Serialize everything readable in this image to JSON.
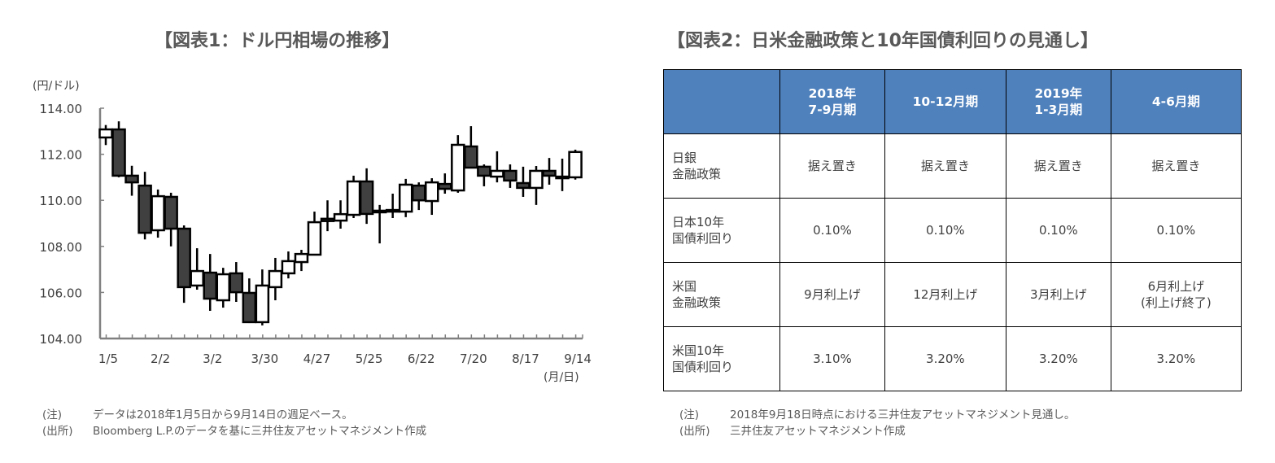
{
  "chart1": {
    "title": "【図表1：ドル円相場の推移】"
  },
  "chart_data": {
    "type": "candlestick",
    "title": "【図表1：ドル円相場の推移】",
    "ylabel": "(円/ドル)",
    "xlabel": "(月/日)",
    "ylim": [
      104,
      114
    ],
    "yticks": [
      "114.00",
      "112.00",
      "110.00",
      "108.00",
      "106.00",
      "104.00"
    ],
    "xtick_labels": [
      "1/5",
      "2/2",
      "3/2",
      "3/30",
      "4/27",
      "5/25",
      "6/22",
      "7/20",
      "8/17",
      "9/14"
    ],
    "xtick_index": [
      0,
      4,
      8,
      12,
      16,
      20,
      24,
      28,
      32,
      36
    ],
    "grid": false,
    "colors": {
      "up": "#ffffff",
      "down": "#404040",
      "outline": "#000000",
      "axis": "#808080"
    },
    "candles": [
      {
        "o": 112.73,
        "h": 113.27,
        "l": 112.4,
        "c": 113.08
      },
      {
        "o": 113.08,
        "h": 113.43,
        "l": 111.0,
        "c": 111.07
      },
      {
        "o": 111.07,
        "h": 111.5,
        "l": 110.2,
        "c": 110.78
      },
      {
        "o": 110.64,
        "h": 111.24,
        "l": 108.3,
        "c": 108.59
      },
      {
        "o": 108.7,
        "h": 110.47,
        "l": 108.38,
        "c": 110.18
      },
      {
        "o": 110.15,
        "h": 110.33,
        "l": 108.0,
        "c": 108.77
      },
      {
        "o": 108.77,
        "h": 108.91,
        "l": 105.55,
        "c": 106.23
      },
      {
        "o": 106.3,
        "h": 107.92,
        "l": 106.12,
        "c": 106.93
      },
      {
        "o": 106.86,
        "h": 107.67,
        "l": 105.2,
        "c": 105.73
      },
      {
        "o": 105.66,
        "h": 107.07,
        "l": 105.34,
        "c": 106.79
      },
      {
        "o": 106.83,
        "h": 107.32,
        "l": 105.59,
        "c": 106.01
      },
      {
        "o": 105.98,
        "h": 106.61,
        "l": 104.67,
        "c": 104.71
      },
      {
        "o": 104.71,
        "h": 107.0,
        "l": 104.57,
        "c": 106.3
      },
      {
        "o": 106.23,
        "h": 107.5,
        "l": 105.66,
        "c": 106.93
      },
      {
        "o": 106.83,
        "h": 107.78,
        "l": 106.61,
        "c": 107.36
      },
      {
        "o": 107.32,
        "h": 107.85,
        "l": 106.93,
        "c": 107.67
      },
      {
        "o": 107.64,
        "h": 109.51,
        "l": 107.64,
        "c": 109.05
      },
      {
        "o": 109.2,
        "h": 110.0,
        "l": 108.66,
        "c": 109.1
      },
      {
        "o": 109.12,
        "h": 110.0,
        "l": 108.77,
        "c": 109.4
      },
      {
        "o": 109.37,
        "h": 111.07,
        "l": 109.23,
        "c": 110.82
      },
      {
        "o": 110.82,
        "h": 111.39,
        "l": 108.98,
        "c": 109.41
      },
      {
        "o": 109.5,
        "h": 109.8,
        "l": 108.13,
        "c": 109.55
      },
      {
        "o": 109.55,
        "h": 110.29,
        "l": 109.23,
        "c": 109.58
      },
      {
        "o": 109.51,
        "h": 110.93,
        "l": 109.27,
        "c": 110.68
      },
      {
        "o": 110.64,
        "h": 110.78,
        "l": 109.58,
        "c": 110.0
      },
      {
        "o": 109.97,
        "h": 110.96,
        "l": 109.37,
        "c": 110.78
      },
      {
        "o": 110.71,
        "h": 111.17,
        "l": 110.29,
        "c": 110.5
      },
      {
        "o": 110.43,
        "h": 112.83,
        "l": 110.33,
        "c": 112.41
      },
      {
        "o": 112.34,
        "h": 113.22,
        "l": 111.42,
        "c": 111.42
      },
      {
        "o": 111.46,
        "h": 111.56,
        "l": 110.61,
        "c": 111.07
      },
      {
        "o": 111.03,
        "h": 112.13,
        "l": 110.78,
        "c": 111.28
      },
      {
        "o": 111.28,
        "h": 111.56,
        "l": 110.54,
        "c": 110.86
      },
      {
        "o": 110.75,
        "h": 111.46,
        "l": 110.15,
        "c": 110.54
      },
      {
        "o": 110.54,
        "h": 111.49,
        "l": 109.8,
        "c": 111.28
      },
      {
        "o": 111.28,
        "h": 111.84,
        "l": 110.68,
        "c": 111.07
      },
      {
        "o": 111.0,
        "h": 111.81,
        "l": 110.4,
        "c": 111.03
      },
      {
        "o": 111.0,
        "h": 112.2,
        "l": 110.9,
        "c": 112.1
      }
    ]
  },
  "notes1": [
    {
      "label": "(注)",
      "text": "データは2018年1月5日から9月14日の週足ベース。"
    },
    {
      "label": "(出所)",
      "text": "Bloomberg L.P.のデータを基に三井住友アセットマネジメント作成"
    }
  ],
  "table": {
    "title": "【図表2：日米金融政策と10年国債利回りの見通し】",
    "header_color": "#4f81bd",
    "headers": [
      [
        "",
        ""
      ],
      [
        "2018年",
        "7-9月期"
      ],
      [
        "10-12月期",
        ""
      ],
      [
        "2019年",
        "1-3月期"
      ],
      [
        "4-6月期",
        ""
      ]
    ],
    "rows": [
      {
        "label": [
          "日銀",
          "金融政策"
        ],
        "cells": [
          [
            "据え置き",
            ""
          ],
          [
            "据え置き",
            ""
          ],
          [
            "据え置き",
            ""
          ],
          [
            "据え置き",
            ""
          ]
        ]
      },
      {
        "label": [
          "日本10年",
          "国債利回り"
        ],
        "cells": [
          [
            "0.10%",
            ""
          ],
          [
            "0.10%",
            ""
          ],
          [
            "0.10%",
            ""
          ],
          [
            "0.10%",
            ""
          ]
        ]
      },
      {
        "label": [
          "米国",
          "金融政策"
        ],
        "cells": [
          [
            "9月利上げ",
            ""
          ],
          [
            "12月利上げ",
            ""
          ],
          [
            "3月利上げ",
            ""
          ],
          [
            "6月利上げ",
            "(利上げ終了)"
          ]
        ]
      },
      {
        "label": [
          "米国10年",
          "国債利回り"
        ],
        "cells": [
          [
            "3.10%",
            ""
          ],
          [
            "3.20%",
            ""
          ],
          [
            "3.20%",
            ""
          ],
          [
            "3.20%",
            ""
          ]
        ]
      }
    ]
  },
  "notes2": [
    {
      "label": "(注)",
      "text": "2018年9月18日時点における三井住友アセットマネジメント見通し。"
    },
    {
      "label": "(出所)",
      "text": "三井住友アセットマネジメント作成"
    }
  ]
}
